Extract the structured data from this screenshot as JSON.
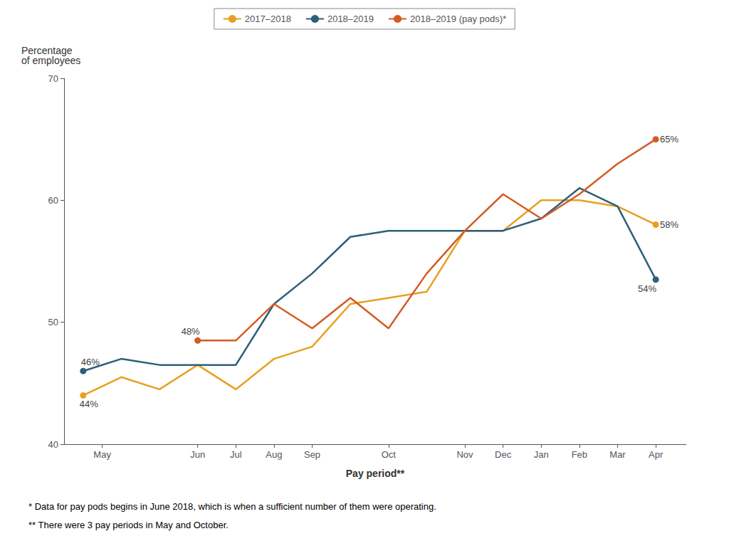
{
  "chart_data": {
    "type": "line",
    "y_label": "Percentage\nof employees",
    "x_label": "Pay period**",
    "xlim": [
      0.5,
      16.8
    ],
    "xticks": [
      {
        "value": 1.5,
        "label": "May"
      },
      {
        "value": 4,
        "label": "Jun"
      },
      {
        "value": 5,
        "label": "Jul"
      },
      {
        "value": 6,
        "label": "Aug"
      },
      {
        "value": 7,
        "label": "Sep"
      },
      {
        "value": 9,
        "label": "Oct"
      },
      {
        "value": 11,
        "label": "Nov"
      },
      {
        "value": 12,
        "label": "Dec"
      },
      {
        "value": 13,
        "label": "Jan"
      },
      {
        "value": 14,
        "label": "Feb"
      },
      {
        "value": 15,
        "label": "Mar"
      },
      {
        "value": 16,
        "label": "Apr"
      }
    ],
    "ylim": [
      40,
      70
    ],
    "yticks": [
      40,
      50,
      60,
      70
    ],
    "grid": false,
    "legend": "top",
    "series": [
      {
        "name": "2017–2018",
        "color": "#E8A020",
        "marker": "circle",
        "x": [
          1,
          2,
          3,
          4,
          5,
          6,
          7,
          8,
          9,
          10,
          11,
          12,
          13,
          14,
          15,
          16
        ],
        "values": [
          44.0,
          45.5,
          44.5,
          46.5,
          44.5,
          47.0,
          48.0,
          51.5,
          52.0,
          52.5,
          57.5,
          57.5,
          60.0,
          60.0,
          59.5,
          58.0
        ]
      },
      {
        "name": "2018–2019",
        "color": "#2E5F7A",
        "marker": "circle",
        "x": [
          1,
          2,
          3,
          4,
          5,
          6,
          7,
          8,
          9,
          10,
          11,
          12,
          13,
          14,
          15,
          16
        ],
        "values": [
          46.0,
          47.0,
          46.5,
          46.5,
          46.5,
          51.5,
          54.0,
          57.0,
          57.5,
          57.5,
          57.5,
          57.5,
          58.5,
          61.0,
          59.5,
          53.5
        ]
      },
      {
        "name": "2018–2019 (pay pods)*",
        "color": "#D45B25",
        "marker": "circle",
        "x": [
          4,
          5,
          6,
          7,
          8,
          9,
          10,
          11,
          12,
          13,
          14,
          15,
          16
        ],
        "values": [
          48.5,
          48.5,
          51.5,
          49.5,
          52.0,
          49.5,
          54.0,
          57.5,
          60.5,
          58.5,
          60.5,
          63.0,
          65.0
        ]
      }
    ],
    "annotations": [
      {
        "text": "44%",
        "x": 1,
        "y": 44.0
      },
      {
        "text": "46%",
        "x": 1,
        "y": 46.0
      },
      {
        "text": "48%",
        "x": 4,
        "y": 48.5
      },
      {
        "text": "54%",
        "x": 16,
        "y": 53.5
      },
      {
        "text": "58%",
        "x": 16,
        "y": 58.0
      },
      {
        "text": "65%",
        "x": 16,
        "y": 65.0
      }
    ],
    "footnotes": [
      "* Data for pay pods begins in June 2018, which is when a sufficient number of them were operating.",
      "** There were 3 pay periods in May and October."
    ]
  }
}
